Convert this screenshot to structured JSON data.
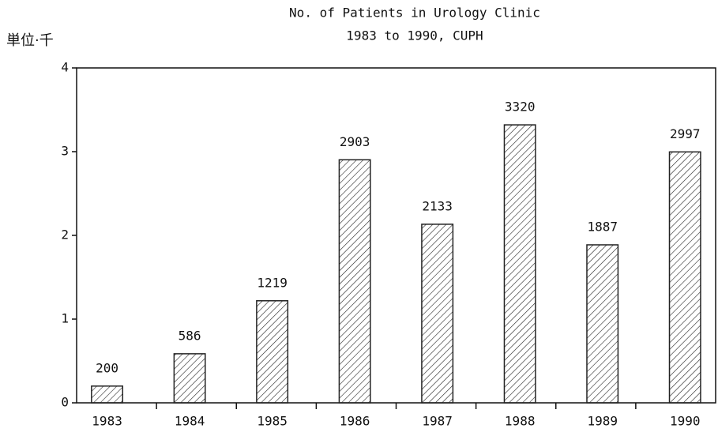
{
  "chart_data": {
    "type": "bar",
    "title": "No. of Patients in Urology Clinic",
    "subtitle": "1983 to 1990, CUPH",
    "y_label": "単位·千",
    "categories": [
      "1983",
      "1984",
      "1985",
      "1986",
      "1987",
      "1988",
      "1989",
      "1990"
    ],
    "values": [
      0.2,
      0.586,
      1.219,
      2.903,
      2.133,
      3.32,
      1.887,
      2.997
    ],
    "value_labels": [
      "200",
      "586",
      "1219",
      "2903",
      "2133",
      "3320",
      "1887",
      "2997"
    ],
    "color": "#222222",
    "ylim": [
      0,
      4
    ],
    "yticks": [
      0,
      1,
      2,
      3,
      4
    ],
    "grid": false
  }
}
